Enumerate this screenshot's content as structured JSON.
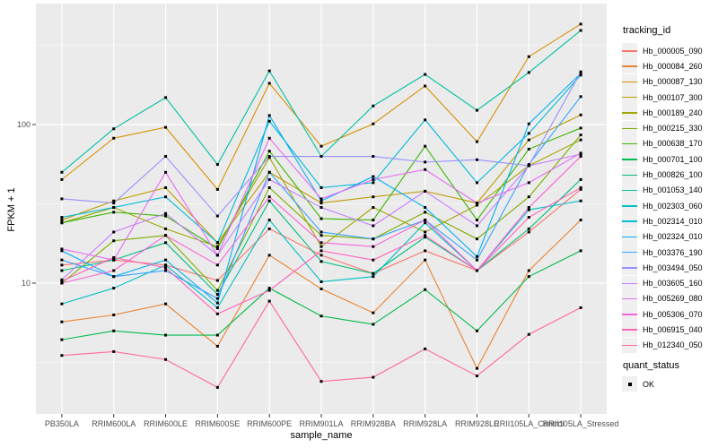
{
  "figure": {
    "background": "#FFFFFF",
    "panel_background": "#EBEBEB",
    "gridline_color": "#FFFFFF",
    "tick_color": "#333333",
    "axis_text_color": "#4D4D4D",
    "point_color": "#000000",
    "legend_key_background": "#F0F0F0"
  },
  "chart_data": {
    "type": "line",
    "title": "",
    "xlabel": "sample_name",
    "ylabel": "FPKM + 1",
    "y_scale": "log10",
    "ylim": [
      1.5,
      570
    ],
    "y_major_ticks": [
      100,
      10
    ],
    "y_minor_ticks": [
      316.2,
      31.62,
      3.162
    ],
    "grid": true,
    "point_marker": "black-square",
    "categories": [
      "PB350LA",
      "RRIM600LA",
      "RRIM600LE",
      "RRIM600SE",
      "RRIM600PE",
      "RRIM901LA",
      "RRIM928BA",
      "RRIM928LA",
      "RRIM928LE",
      "RRII105LA_Control",
      "RRII105LA_Stressed"
    ],
    "series": [
      {
        "name": "Hb_000005_090",
        "color": "#F8766D",
        "values": [
          13,
          14,
          13,
          10.4,
          22,
          15,
          11.5,
          16,
          12,
          21,
          39
        ]
      },
      {
        "name": "Hb_000084_260",
        "color": "#EA8331",
        "values": [
          5.7,
          6.3,
          7.4,
          4.0,
          15,
          9.2,
          6.5,
          14,
          2.9,
          12,
          25
        ]
      },
      {
        "name": "Hb_000087_130",
        "color": "#D89000",
        "values": [
          45,
          82,
          96,
          39,
          182,
          73,
          101,
          175,
          78,
          268,
          430
        ]
      },
      {
        "name": "Hb_000107_300",
        "color": "#C09B00",
        "values": [
          25,
          33,
          40,
          18,
          50,
          32,
          35,
          38,
          32,
          80,
          115
        ]
      },
      {
        "name": "Hb_000189_240",
        "color": "#A3A500",
        "values": [
          24,
          30,
          22,
          17,
          62,
          17,
          30,
          21,
          31,
          55,
          80
        ]
      },
      {
        "name": "Hb_000215_330",
        "color": "#7CAE00",
        "values": [
          10,
          18.5,
          20,
          9,
          40,
          20,
          19,
          28,
          19,
          35,
          86
        ]
      },
      {
        "name": "Hb_000638_170",
        "color": "#39B600",
        "values": [
          24,
          28,
          26.5,
          16.5,
          68,
          25.5,
          25,
          73,
          25,
          70,
          95
        ]
      },
      {
        "name": "Hb_000701_100",
        "color": "#00BB4E",
        "values": [
          4.4,
          5.0,
          4.7,
          4.7,
          9.3,
          6.2,
          5.5,
          9.1,
          5.0,
          11,
          16
        ]
      },
      {
        "name": "Hb_000826_100",
        "color": "#00BF7D",
        "values": [
          12,
          14,
          18,
          8.5,
          33,
          13.7,
          11.5,
          19.5,
          12,
          22,
          45
        ]
      },
      {
        "name": "Hb_001053_140",
        "color": "#00C1A3",
        "values": [
          50,
          94,
          148,
          56,
          218,
          63,
          131,
          207,
          123,
          213,
          392
        ]
      },
      {
        "name": "Hb_002303_060",
        "color": "#00BFC4",
        "values": [
          7.4,
          9.3,
          13,
          7,
          25,
          10.2,
          11,
          24,
          12,
          29,
          33
        ]
      },
      {
        "name": "Hb_002314_010",
        "color": "#00BBDA",
        "values": [
          26,
          30,
          35,
          18,
          105,
          40,
          43,
          107,
          43,
          88,
          205
        ]
      },
      {
        "name": "Hb_002324_010",
        "color": "#00B0F6",
        "values": [
          16,
          11,
          14,
          7.5,
          114,
          33,
          47,
          30,
          14.7,
          101,
          210
        ]
      },
      {
        "name": "Hb_003376_190",
        "color": "#35A2FF",
        "values": [
          14,
          11,
          12,
          8,
          50,
          21,
          19,
          25,
          14,
          56,
          150
        ]
      },
      {
        "name": "Hb_003494_050",
        "color": "#9590FF",
        "values": [
          34,
          32,
          63,
          26.5,
          63,
          63,
          63,
          58,
          60,
          55,
          215
        ]
      },
      {
        "name": "Hb_003605_160",
        "color": "#C77CFF",
        "values": [
          10.5,
          21,
          27.5,
          15,
          45,
          30,
          23,
          38,
          23,
          55,
          65
        ]
      },
      {
        "name": "Hb_005269_080",
        "color": "#E76BF3",
        "values": [
          16.4,
          14,
          50,
          15,
          82,
          34,
          45,
          52,
          32,
          43,
          66
        ]
      },
      {
        "name": "Hb_005306_070",
        "color": "#FA62DB",
        "values": [
          10,
          12,
          20,
          13,
          35,
          18,
          17,
          25,
          12,
          30,
          63
        ]
      },
      {
        "name": "Hb_006915_040",
        "color": "#FF62BC",
        "values": [
          10.3,
          14.5,
          12.5,
          6.4,
          9,
          16,
          14,
          20,
          12,
          26,
          40
        ]
      },
      {
        "name": "Hb_012340_050",
        "color": "#FF6A98",
        "values": [
          3.5,
          3.7,
          3.3,
          2.2,
          7.7,
          2.4,
          2.55,
          3.85,
          2.6,
          4.75,
          7
        ]
      }
    ],
    "legend": {
      "position": "right",
      "color_title": "tracking_id",
      "shape_title": "quant_status",
      "shape_entries": [
        {
          "label": "OK",
          "marker": "black-square"
        }
      ]
    }
  }
}
